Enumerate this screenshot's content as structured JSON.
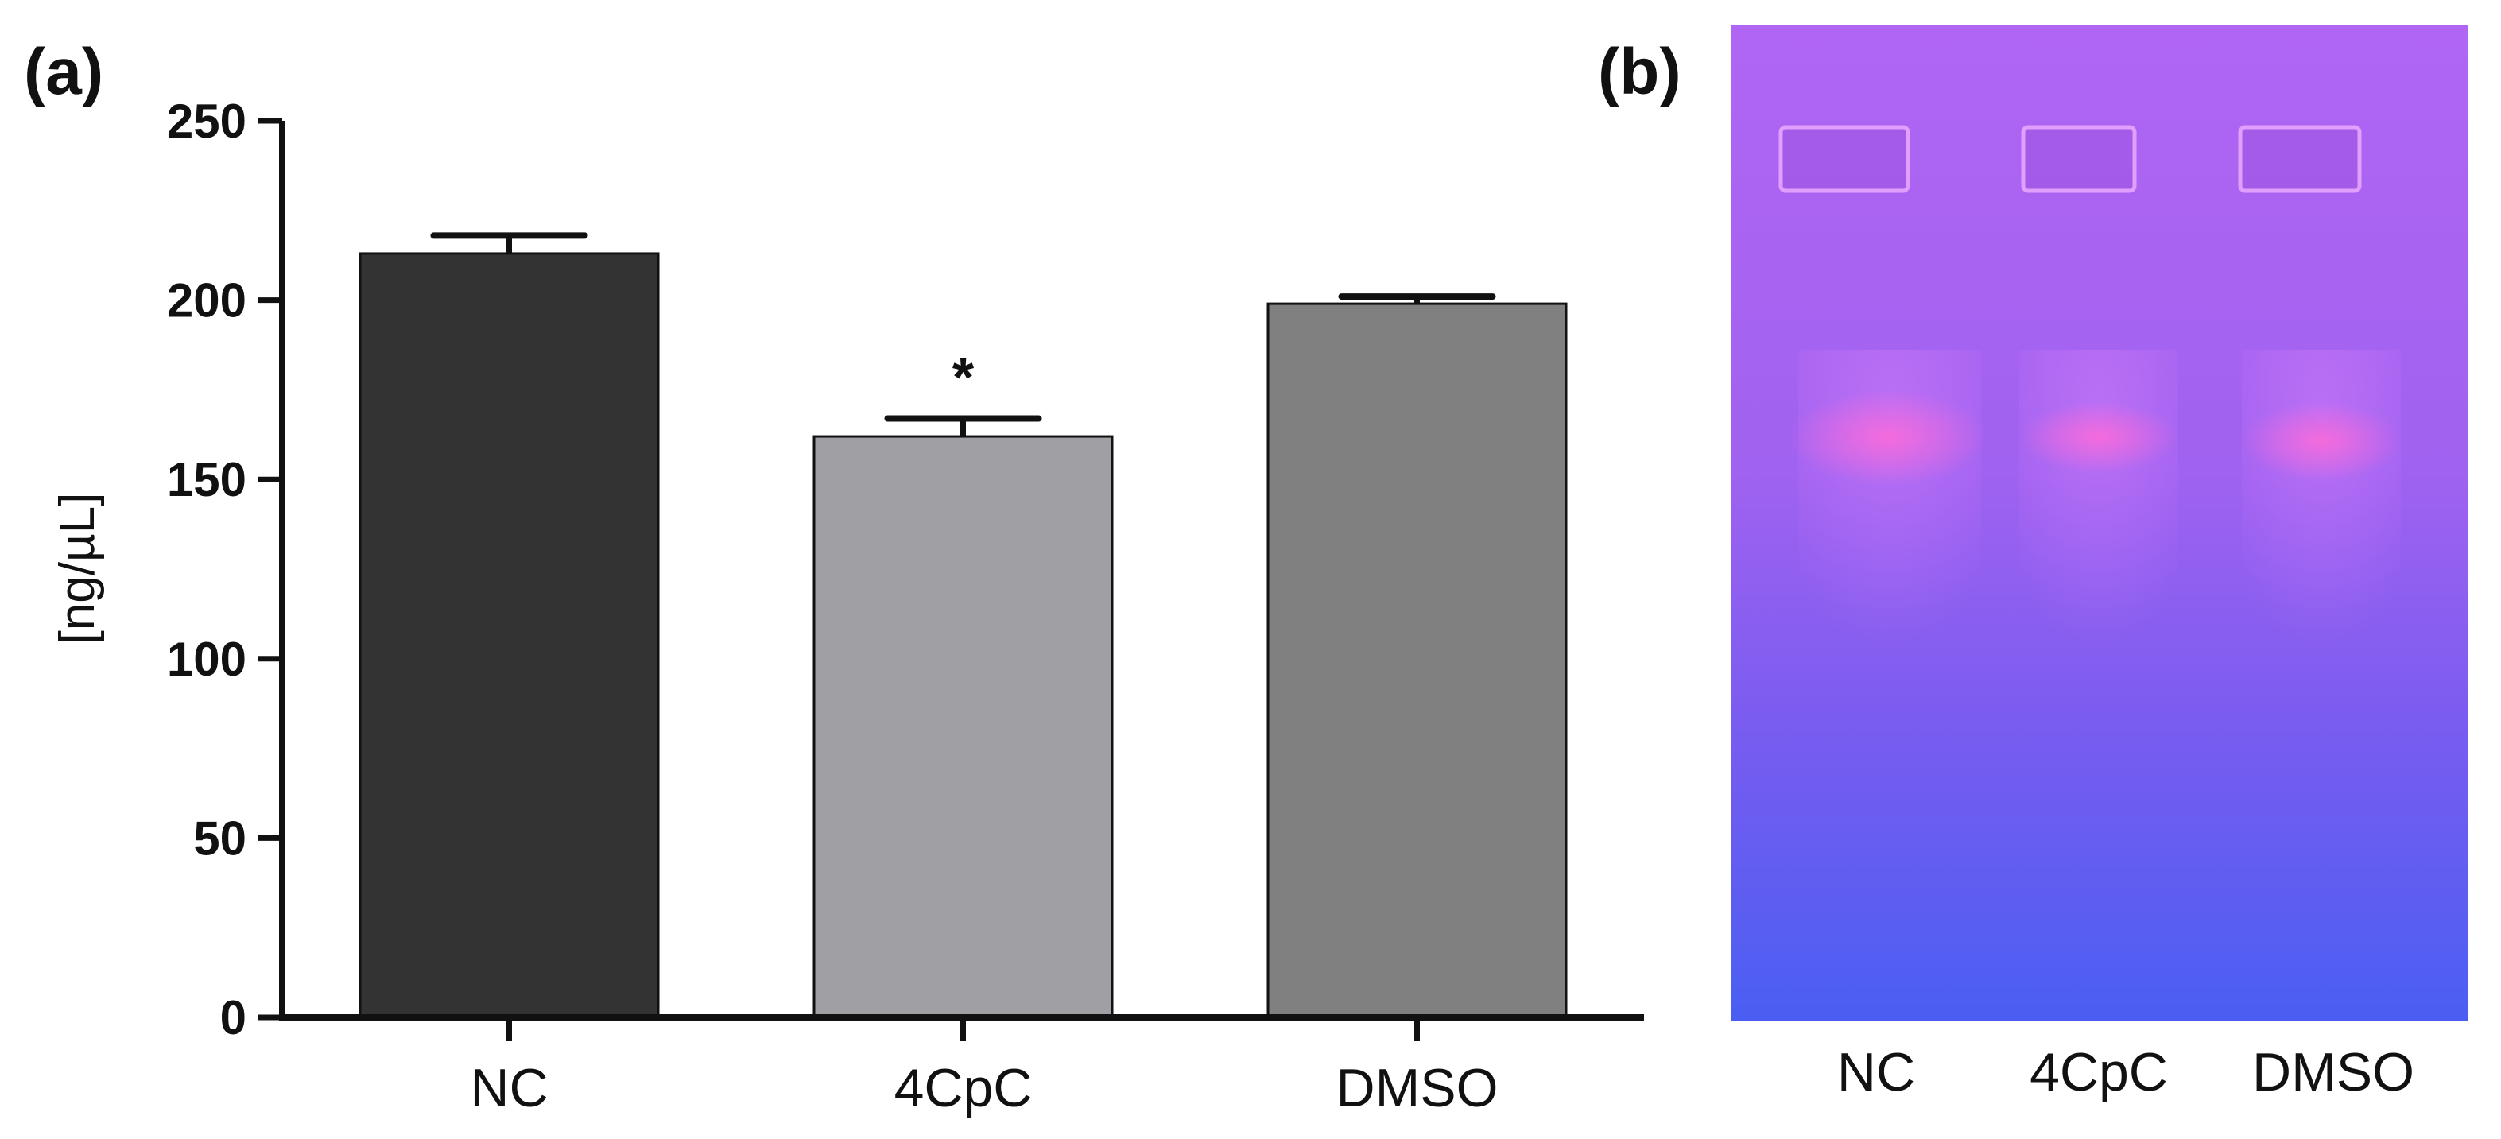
{
  "chart_data": {
    "type": "bar",
    "title": "",
    "xlabel": "",
    "ylabel": "[ng/µL]",
    "ylim": [
      0,
      250
    ],
    "yticks": [
      0,
      50,
      100,
      150,
      200,
      250
    ],
    "categories": [
      "NC",
      "4CpC",
      "DMSO"
    ],
    "values": [
      213,
      162,
      199
    ],
    "errors": [
      5,
      5,
      2
    ],
    "colors": [
      "#333333",
      "#a0a0a4",
      "#808080"
    ],
    "annotations": [
      {
        "category": "4CpC",
        "text": "*"
      }
    ],
    "grid": false
  },
  "panels": {
    "a_label": "(a)",
    "b_label": "(b)"
  },
  "gel": {
    "lane_labels": [
      "NC",
      "4CpC",
      "DMSO"
    ]
  }
}
